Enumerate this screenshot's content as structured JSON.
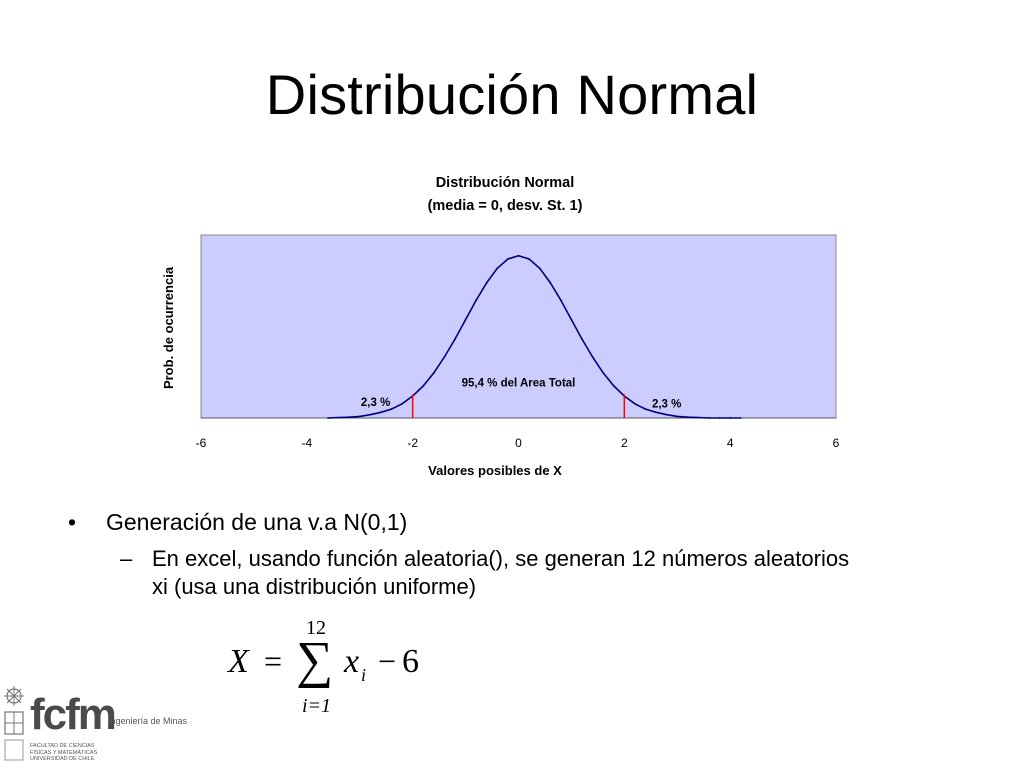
{
  "slide": {
    "title": "Distribución Normal",
    "bullet_main": "Generación de una v.a N(0,1)",
    "bullet_sub_line1": "En excel, usando función aleatoria(), se generan 12 números aleatorios",
    "bullet_sub_line2": "xi (usa una distribución uniforme)",
    "bullet_symbol": "•",
    "dash_symbol": "–"
  },
  "formula": {
    "lhs": "X",
    "equals": "=",
    "sigma": "∑",
    "upper": "12",
    "lower": "i=1",
    "term": "x",
    "subscript": "i",
    "minus": "−",
    "constant": "6"
  },
  "logo": {
    "mark": "fcfm",
    "dept": "Ingeniería de Minas",
    "faculty_line1": "FACULTAD DE CIENCIAS",
    "faculty_line2": "FÍSICAS Y MATEMÁTICAS",
    "faculty_line3": "UNIVERSIDAD DE CHILE"
  },
  "colors": {
    "plot_background": "#ccccff",
    "curve": "#000080",
    "markers": "#ff0000",
    "logo_gray": "#555555"
  },
  "chart_data": {
    "type": "line",
    "title": "Distribución Normal",
    "subtitle": "(media = 0, desv. St. 1)",
    "xlabel": "Valores posibles de X",
    "ylabel": "Prob. de ocurrencia",
    "xlim": [
      -6,
      6
    ],
    "ylim": [
      0,
      0.45
    ],
    "xticks": [
      -6,
      -4,
      -2,
      0,
      2,
      4,
      6
    ],
    "xtick_labels": [
      "-6",
      "-4",
      "-2",
      "0",
      "2",
      "4",
      "6"
    ],
    "grid": false,
    "legend": "none",
    "series": [
      {
        "x": [
          -3.6,
          -3.4,
          -3.2,
          -3.0,
          -2.8,
          -2.6,
          -2.4,
          -2.2,
          -2.0,
          -1.8,
          -1.6,
          -1.4,
          -1.2,
          -1.0,
          -0.8,
          -0.6,
          -0.4,
          -0.2,
          0.0,
          0.2,
          0.4,
          0.6,
          0.8,
          1.0,
          1.2,
          1.4,
          1.6,
          1.8,
          2.0,
          2.2,
          2.4,
          2.6,
          2.8,
          3.0,
          3.2,
          3.4,
          3.6,
          3.8,
          4.0,
          4.2
        ],
        "y": [
          0.0,
          0.001,
          0.002,
          0.004,
          0.008,
          0.014,
          0.022,
          0.035,
          0.054,
          0.079,
          0.111,
          0.15,
          0.194,
          0.242,
          0.29,
          0.333,
          0.368,
          0.391,
          0.399,
          0.391,
          0.368,
          0.333,
          0.29,
          0.242,
          0.194,
          0.15,
          0.111,
          0.079,
          0.054,
          0.035,
          0.022,
          0.014,
          0.008,
          0.004,
          0.002,
          0.001,
          0.0,
          0.0,
          0.0,
          0.0
        ]
      }
    ],
    "markers_x": [
      -2,
      2
    ],
    "annotations": [
      {
        "text": "95,4 % del Area Total",
        "x": 0,
        "y": 0.078
      },
      {
        "text": "2,3 %",
        "x": -2.7,
        "y": 0.03
      },
      {
        "text": "2,3 %",
        "x": 2.8,
        "y": 0.026
      }
    ]
  }
}
